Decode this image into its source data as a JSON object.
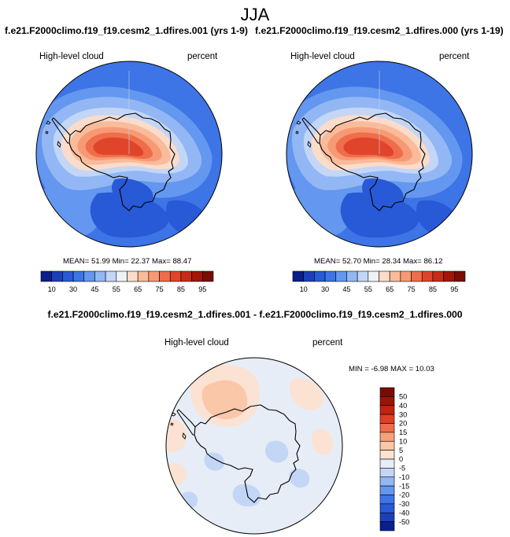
{
  "figure": {
    "season": "JJA",
    "panels": [
      {
        "case": "f.e21.F2000climo.f19_f19.cesm2_1.dfires.001 (yrs 1-9)",
        "field": "High-level cloud",
        "units": "percent",
        "stats": "MEAN=  51.99  Min=  22.37  Max=  88.47",
        "mean": 51.99,
        "min": 22.37,
        "max": 88.47
      },
      {
        "case": "f.e21.F2000climo.f19_f19.cesm2_1.dfires.000 (yrs 1-19)",
        "field": "High-level cloud",
        "units": "percent",
        "stats": "MEAN=  52.70  Min=  28.34  Max=  86.12",
        "mean": 52.7,
        "min": 28.34,
        "max": 86.12
      }
    ],
    "difference": {
      "title": "f.e21.F2000climo.f19_f19.cesm2_1.dfires.001 - f.e21.F2000climo.f19_f19.cesm2_1.dfires.000",
      "field": "High-level cloud",
      "units": "percent",
      "stats": "MIN = -6.98 MAX = 10.03",
      "min": -6.98,
      "max": 10.03
    }
  },
  "colorbar_main": {
    "colors": [
      "#0a1e8c",
      "#1b3fb7",
      "#2859d6",
      "#3d74e6",
      "#6497ef",
      "#93b7f4",
      "#c3d6f6",
      "#eef2f5",
      "#fbdccb",
      "#fabb9b",
      "#f79a74",
      "#ef6d4b",
      "#e0452b",
      "#c72b17",
      "#a21508",
      "#7a0d03"
    ],
    "tick_labels": [
      "10",
      "30",
      "45",
      "55",
      "65",
      "75",
      "85",
      "95"
    ]
  },
  "colorbar_diff": {
    "colors": [
      "#0a1e8c",
      "#1b3fb7",
      "#2859d6",
      "#3d74e6",
      "#6497ef",
      "#93b7f4",
      "#c3d6f6",
      "#e6edf7",
      "#fbe2d2",
      "#fbc7a9",
      "#f7a078",
      "#ef6d4b",
      "#df3f25",
      "#c3220f",
      "#9e1306",
      "#7a0d03"
    ],
    "tick_labels": [
      "50",
      "40",
      "30",
      "20",
      "15",
      "10",
      "5",
      "0",
      "-5",
      "-10",
      "-15",
      "-20",
      "-30",
      "-40",
      "-50"
    ]
  }
}
